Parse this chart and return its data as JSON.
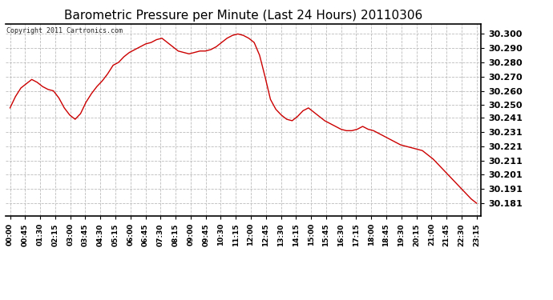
{
  "title": "Barometric Pressure per Minute (Last 24 Hours) 20110306",
  "copyright_text": "Copyright 2011 Cartronics.com",
  "line_color": "#cc0000",
  "bg_color": "#ffffff",
  "grid_color": "#bbbbbb",
  "yticks": [
    30.181,
    30.191,
    30.201,
    30.211,
    30.221,
    30.231,
    30.241,
    30.25,
    30.26,
    30.27,
    30.28,
    30.29,
    30.3
  ],
  "ylim": [
    30.172,
    30.307
  ],
  "xtick_labels": [
    "00:00",
    "00:45",
    "01:30",
    "02:15",
    "03:00",
    "03:45",
    "04:30",
    "05:15",
    "06:00",
    "06:45",
    "07:30",
    "08:15",
    "09:00",
    "09:45",
    "10:30",
    "11:15",
    "12:00",
    "12:45",
    "13:30",
    "14:15",
    "15:00",
    "15:45",
    "16:30",
    "17:15",
    "18:00",
    "18:45",
    "19:30",
    "20:15",
    "21:00",
    "21:45",
    "22:30",
    "23:15"
  ],
  "pressure_data": [
    30.248,
    30.256,
    30.262,
    30.265,
    30.268,
    30.266,
    30.263,
    30.261,
    30.26,
    30.255,
    30.248,
    30.243,
    30.24,
    30.244,
    30.252,
    30.258,
    30.263,
    30.267,
    30.272,
    30.278,
    30.28,
    30.284,
    30.287,
    30.289,
    30.291,
    30.293,
    30.294,
    30.296,
    30.297,
    30.294,
    30.291,
    30.288,
    30.287,
    30.286,
    30.287,
    30.288,
    30.288,
    30.289,
    30.291,
    30.294,
    30.297,
    30.299,
    30.3,
    30.299,
    30.297,
    30.294,
    30.285,
    30.27,
    30.254,
    30.247,
    30.243,
    30.24,
    30.239,
    30.242,
    30.246,
    30.248,
    30.245,
    30.242,
    30.239,
    30.237,
    30.235,
    30.233,
    30.232,
    30.232,
    30.233,
    30.235,
    30.233,
    30.232,
    30.23,
    30.228,
    30.226,
    30.224,
    30.222,
    30.221,
    30.22,
    30.219,
    30.218,
    30.215,
    30.212,
    30.208,
    30.204,
    30.2,
    30.196,
    30.192,
    30.188,
    30.184,
    30.181
  ]
}
